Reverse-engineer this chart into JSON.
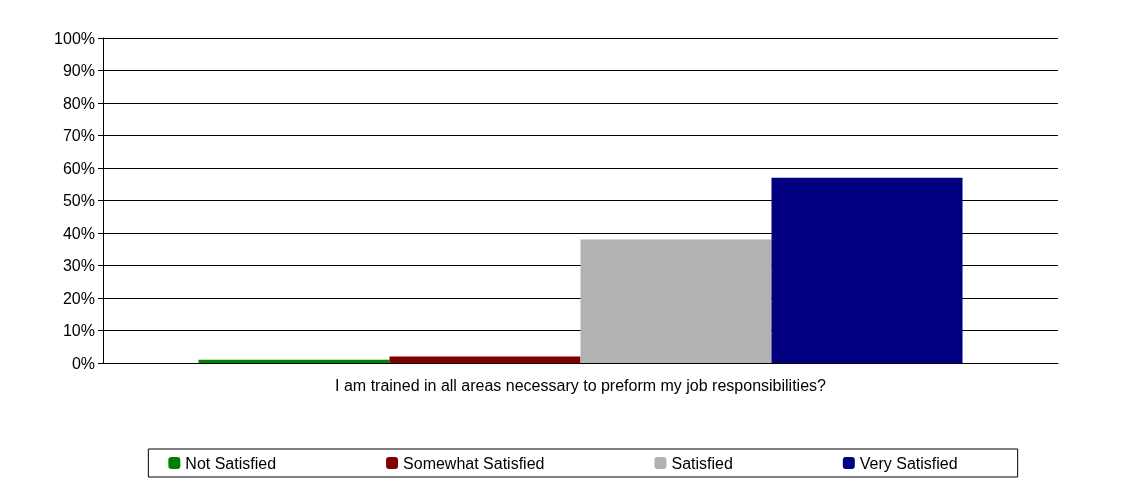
{
  "chart_data": {
    "type": "bar",
    "categories": [
      "I am trained in all areas necessary to preform my job responsibilities?"
    ],
    "series": [
      {
        "name": "Not Satisfied",
        "color": "#008000",
        "values": [
          1
        ]
      },
      {
        "name": "Somewhat Satisfied",
        "color": "#800000",
        "values": [
          2
        ]
      },
      {
        "name": "Satisfied",
        "color": "#b2b2b2",
        "values": [
          38
        ]
      },
      {
        "name": "Very Satisfied",
        "color": "#000080",
        "values": [
          57
        ]
      }
    ],
    "ylim": [
      0,
      100
    ],
    "yticks": [
      {
        "value": 0,
        "label": "0%"
      },
      {
        "value": 10,
        "label": "10%"
      },
      {
        "value": 20,
        "label": "20%"
      },
      {
        "value": 30,
        "label": "30%"
      },
      {
        "value": 40,
        "label": "40%"
      },
      {
        "value": 50,
        "label": "50%"
      },
      {
        "value": 60,
        "label": "60%"
      },
      {
        "value": 70,
        "label": "70%"
      },
      {
        "value": 80,
        "label": "80%"
      },
      {
        "value": 90,
        "label": "90%"
      },
      {
        "value": 100,
        "label": "100%"
      }
    ],
    "grid": "y",
    "legend": "bottom"
  }
}
